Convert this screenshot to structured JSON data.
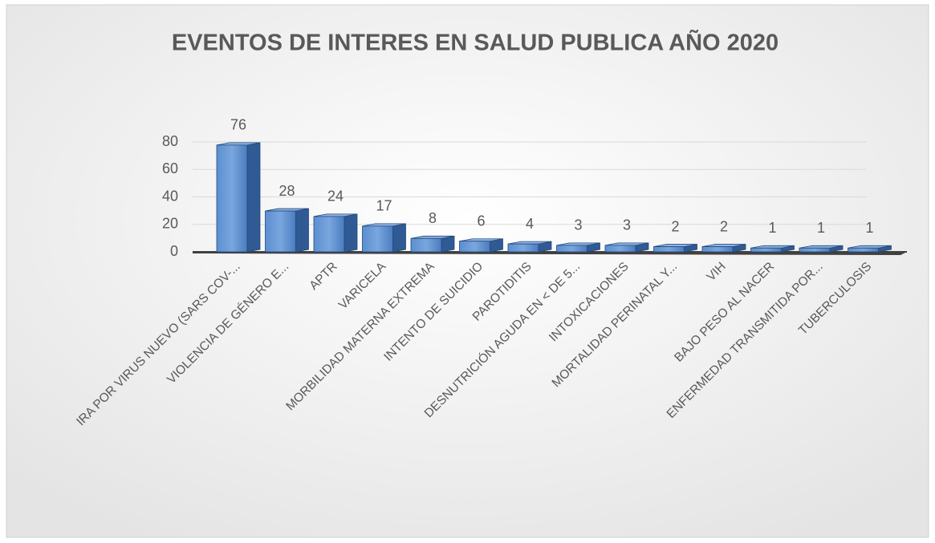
{
  "chart_data": {
    "type": "bar",
    "title": "EVENTOS DE INTERES EN SALUD PUBLICA  AÑO 2020",
    "categories": [
      "IRA POR VIRUS NUEVO (SARS COV-...",
      "VIOLENCIA DE GÉNERO E...",
      "APTR",
      "VARICELA",
      "MORBILIDAD MATERNA EXTREMA",
      "INTENTO DE SUICIDIO",
      "PAROTIDITIS",
      "DESNUTRICIÓN AGUDA EN < DE 5...",
      "INTOXICACIONES",
      "MORTALIDAD PERINATAL Y...",
      "VIH",
      "BAJO PESO AL NACER",
      "ENFERMEDAD TRANSMITIDA POR...",
      "TUBERCULOSIS"
    ],
    "values": [
      76,
      28,
      24,
      17,
      8,
      6,
      4,
      3,
      3,
      2,
      2,
      1,
      1,
      1
    ],
    "color": "#4f81bd",
    "ylim": [
      0,
      80
    ],
    "yticks": [
      0,
      20,
      40,
      60,
      80
    ],
    "grid": true
  }
}
